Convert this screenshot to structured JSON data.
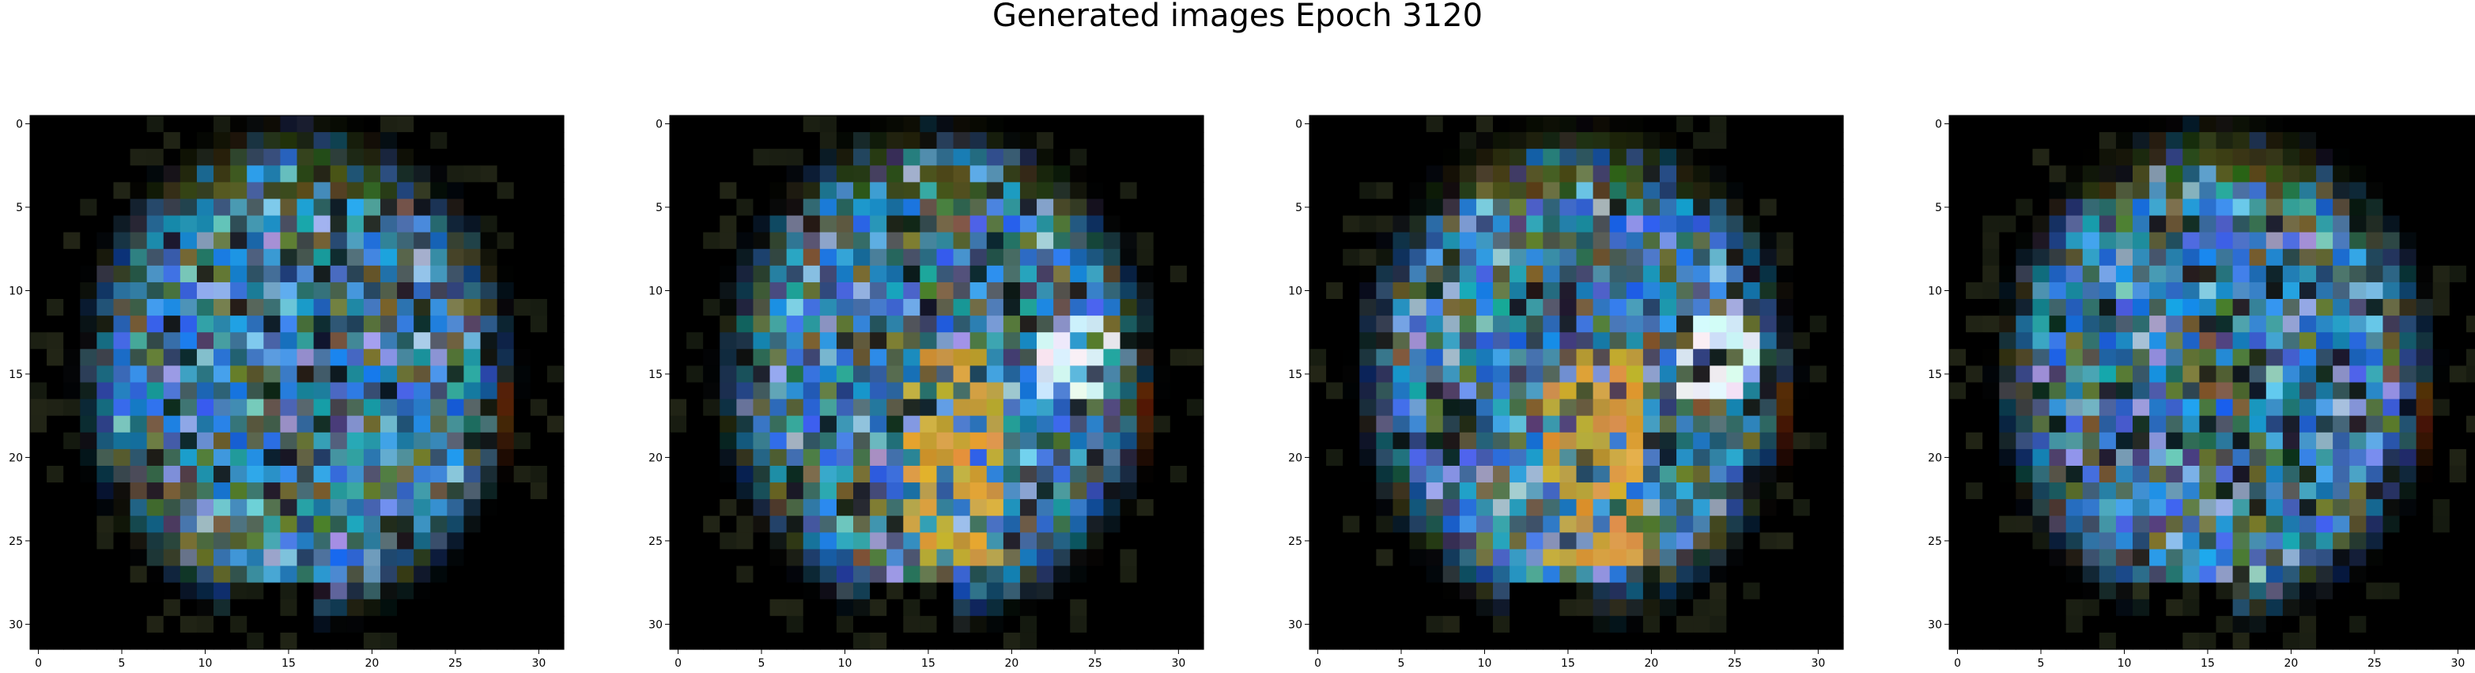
{
  "title": "Generated images Epoch 3120",
  "chart_data": [
    {
      "type": "heatmap",
      "xlim": [
        -0.5,
        31.5
      ],
      "ylim": [
        31.5,
        -0.5
      ],
      "xticks": [
        "0",
        "5",
        "10",
        "15",
        "20",
        "25",
        "30"
      ],
      "yticks": [
        "0",
        "5",
        "10",
        "15",
        "20",
        "25",
        "30"
      ],
      "grid": false,
      "values": [],
      "palette": {
        "background": "#000000",
        "blue": "#1f6fbf",
        "teal": "#3a8fb0",
        "olive": "#6b7a3a",
        "orange": "#e06a1a",
        "red": "#e8331a",
        "gold": "#c89a30"
      }
    },
    {
      "type": "heatmap",
      "xlim": [
        -0.5,
        31.5
      ],
      "ylim": [
        31.5,
        -0.5
      ],
      "xticks": [
        "0",
        "5",
        "10",
        "15",
        "20",
        "25",
        "30"
      ],
      "yticks": [
        "0",
        "5",
        "10",
        "15",
        "20",
        "25",
        "30"
      ],
      "grid": false,
      "values": [],
      "palette": {
        "background": "#000000",
        "blue": "#1f6fbf",
        "teal": "#3a8fb0",
        "olive": "#6b7a3a",
        "orange": "#e06a1a",
        "red": "#e8331a",
        "gold": "#c89a30"
      }
    },
    {
      "type": "heatmap",
      "xlim": [
        -0.5,
        31.5
      ],
      "ylim": [
        31.5,
        -0.5
      ],
      "xticks": [
        "0",
        "5",
        "10",
        "15",
        "20",
        "25",
        "30"
      ],
      "yticks": [
        "0",
        "5",
        "10",
        "15",
        "20",
        "25",
        "30"
      ],
      "grid": false,
      "values": [],
      "palette": {
        "background": "#000000",
        "blue": "#1f6fbf",
        "teal": "#3a8fb0",
        "olive": "#6b7a3a",
        "orange": "#e06a1a",
        "red": "#e8331a",
        "gold": "#c89a30"
      }
    },
    {
      "type": "heatmap",
      "xlim": [
        -0.5,
        31.5
      ],
      "ylim": [
        31.5,
        -0.5
      ],
      "xticks": [
        "0",
        "5",
        "10",
        "15",
        "20",
        "25",
        "30"
      ],
      "yticks": [
        "0",
        "5",
        "10",
        "15",
        "20",
        "25",
        "30"
      ],
      "grid": false,
      "values": [],
      "palette": {
        "background": "#000000",
        "blue": "#1f6fbf",
        "teal": "#3a8fb0",
        "olive": "#6b7a3a",
        "orange": "#e06a1a",
        "red": "#e8331a",
        "gold": "#c89a30"
      }
    }
  ]
}
